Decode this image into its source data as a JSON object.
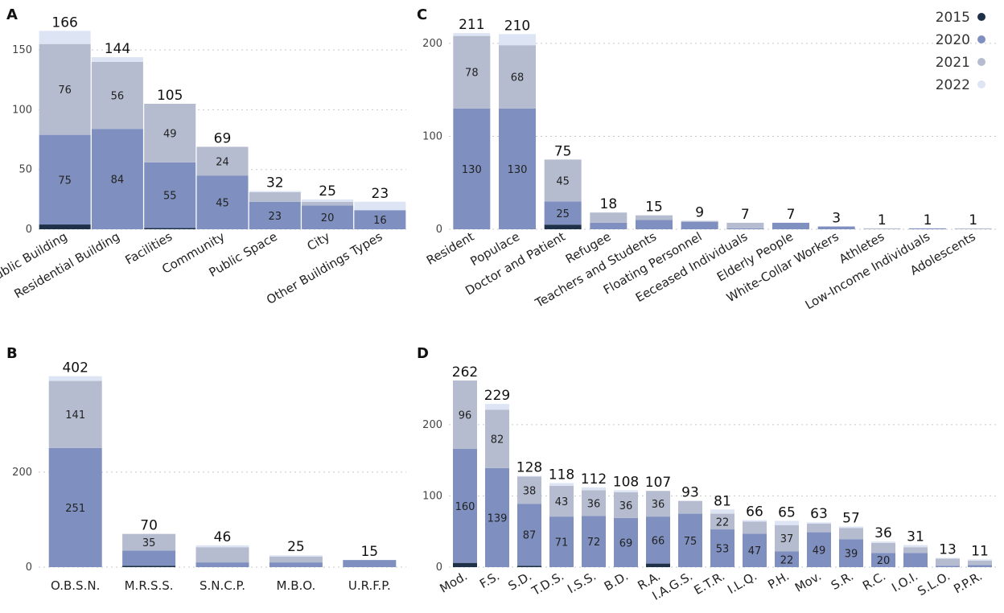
{
  "series_colors": {
    "2015": "#1f3149",
    "2020": "#7f90c0",
    "2021": "#b5bccf",
    "2022": "#dde4f3"
  },
  "legend": {
    "labels": [
      "2015",
      "2020",
      "2021",
      "2022"
    ]
  },
  "chart_data": [
    {
      "panel": "A",
      "type": "bar",
      "stacked": true,
      "ylim": [
        0,
        175
      ],
      "yticks": [
        0,
        50,
        100,
        150
      ],
      "categories": [
        "Public Building",
        "Residential Building",
        "Facilities",
        "Community",
        "Public Space",
        "City",
        "Other Buildings Types"
      ],
      "series": [
        {
          "name": "2015",
          "values": [
            4,
            0,
            1,
            0,
            0,
            0,
            0
          ]
        },
        {
          "name": "2020",
          "values": [
            75,
            84,
            55,
            45,
            23,
            20,
            16
          ]
        },
        {
          "name": "2021",
          "values": [
            76,
            56,
            49,
            24,
            8,
            3,
            0
          ]
        },
        {
          "name": "2022",
          "values": [
            11,
            4,
            0,
            0,
            1,
            2,
            7
          ]
        }
      ],
      "totals": [
        166,
        144,
        105,
        69,
        32,
        25,
        23
      ],
      "segment_labels": [
        [
          null,
          "75",
          "76",
          null
        ],
        [
          null,
          "84",
          "56",
          null
        ],
        [
          null,
          "55",
          "49",
          null
        ],
        [
          null,
          "45",
          "24",
          null
        ],
        [
          null,
          "23",
          null,
          null
        ],
        [
          null,
          "20",
          null,
          null
        ],
        [
          null,
          "16",
          null,
          null
        ]
      ]
    },
    {
      "panel": "B",
      "type": "bar",
      "stacked": true,
      "ylim": [
        0,
        420
      ],
      "yticks": [
        0,
        200
      ],
      "categories": [
        "O.B.S.N.",
        "M.R.S.S.",
        "S.N.C.P.",
        "M.B.O.",
        "U.R.F.P."
      ],
      "series": [
        {
          "name": "2015",
          "values": [
            0,
            3,
            0,
            0,
            0
          ]
        },
        {
          "name": "2020",
          "values": [
            251,
            32,
            10,
            10,
            15
          ]
        },
        {
          "name": "2021",
          "values": [
            141,
            35,
            32,
            12,
            0
          ]
        },
        {
          "name": "2022",
          "values": [
            10,
            0,
            4,
            3,
            0
          ]
        }
      ],
      "totals": [
        402,
        70,
        46,
        25,
        15
      ],
      "segment_labels": [
        [
          null,
          "251",
          "141",
          null
        ],
        [
          null,
          null,
          "35",
          null
        ],
        [
          null,
          null,
          null,
          null
        ],
        [
          null,
          null,
          null,
          null
        ],
        [
          null,
          null,
          null,
          null
        ]
      ]
    },
    {
      "panel": "C",
      "type": "bar",
      "stacked": true,
      "ylim": [
        0,
        225
      ],
      "yticks": [
        0,
        100,
        200
      ],
      "categories": [
        "Resident",
        "Populace",
        "Doctor and Patient",
        "Refugee",
        "Teachers and Students",
        "Floating Personnel",
        "Eeceased Individuals",
        "Elderly People",
        "White-Collar Workers",
        "Athletes",
        "Low-Income Individuals",
        "Adolescents"
      ],
      "series": [
        {
          "name": "2015",
          "values": [
            0,
            0,
            5,
            0,
            0,
            0,
            0,
            0,
            0,
            0,
            0,
            0
          ]
        },
        {
          "name": "2020",
          "values": [
            130,
            130,
            25,
            7,
            10,
            8,
            1,
            7,
            3,
            0,
            1,
            0
          ]
        },
        {
          "name": "2021",
          "values": [
            78,
            68,
            45,
            11,
            5,
            1,
            6,
            0,
            0,
            1,
            0,
            1
          ]
        },
        {
          "name": "2022",
          "values": [
            3,
            12,
            0,
            0,
            0,
            0,
            0,
            0,
            0,
            0,
            0,
            0
          ]
        }
      ],
      "totals": [
        211,
        210,
        75,
        18,
        15,
        9,
        7,
        7,
        3,
        1,
        1,
        1
      ],
      "segment_labels": [
        [
          null,
          "130",
          "78",
          null
        ],
        [
          null,
          "130",
          "68",
          null
        ],
        [
          null,
          "25",
          "45",
          null
        ],
        [
          null,
          null,
          null,
          null
        ],
        [
          null,
          null,
          null,
          null
        ],
        [
          null,
          null,
          null,
          null
        ],
        [
          null,
          null,
          null,
          null
        ],
        [
          null,
          null,
          null,
          null
        ],
        [
          null,
          null,
          null,
          null
        ],
        [
          null,
          null,
          null,
          null
        ],
        [
          null,
          null,
          null,
          null
        ],
        [
          null,
          null,
          null,
          null
        ]
      ]
    },
    {
      "panel": "D",
      "type": "bar",
      "stacked": true,
      "ylim": [
        0,
        280
      ],
      "yticks": [
        0,
        100,
        200
      ],
      "categories": [
        "Mod.",
        "F.S.",
        "S.D.",
        "T.D.S.",
        "I.S.S.",
        "B.D.",
        "R.A.",
        "I.A.G.S.",
        "E.T.R.",
        "I.L.Q.",
        "P.H.",
        "Mov.",
        "S.R.",
        "R.C.",
        "I.O.I.",
        "S.L.O.",
        "P.P.R."
      ],
      "series": [
        {
          "name": "2015",
          "values": [
            6,
            0,
            2,
            0,
            0,
            0,
            5,
            0,
            0,
            0,
            0,
            0,
            0,
            0,
            0,
            0,
            0
          ]
        },
        {
          "name": "2020",
          "values": [
            160,
            139,
            87,
            71,
            72,
            69,
            66,
            75,
            53,
            47,
            22,
            49,
            39,
            20,
            20,
            2,
            3
          ]
        },
        {
          "name": "2021",
          "values": [
            96,
            82,
            38,
            43,
            36,
            36,
            36,
            18,
            22,
            17,
            37,
            12,
            16,
            14,
            8,
            10,
            6
          ]
        },
        {
          "name": "2022",
          "values": [
            0,
            8,
            1,
            4,
            4,
            3,
            0,
            0,
            6,
            2,
            6,
            2,
            2,
            2,
            3,
            1,
            2
          ]
        }
      ],
      "totals": [
        262,
        229,
        128,
        118,
        112,
        108,
        107,
        93,
        81,
        66,
        65,
        63,
        57,
        36,
        31,
        13,
        11
      ],
      "segment_labels": [
        [
          null,
          "160",
          "96",
          null
        ],
        [
          null,
          "139",
          "82",
          null
        ],
        [
          null,
          "87",
          "38",
          null
        ],
        [
          null,
          "71",
          "43",
          null
        ],
        [
          null,
          "72",
          "36",
          null
        ],
        [
          null,
          "69",
          "36",
          null
        ],
        [
          null,
          "66",
          "36",
          null
        ],
        [
          null,
          "75",
          null,
          null
        ],
        [
          null,
          "53",
          "22",
          null
        ],
        [
          null,
          "47",
          null,
          null
        ],
        [
          null,
          "22",
          "37",
          null
        ],
        [
          null,
          "49",
          null,
          null
        ],
        [
          null,
          "39",
          null,
          null
        ],
        [
          null,
          "20",
          null,
          null
        ],
        [
          null,
          null,
          null,
          null
        ],
        [
          null,
          null,
          null,
          null
        ],
        [
          null,
          null,
          null,
          null
        ]
      ]
    }
  ]
}
